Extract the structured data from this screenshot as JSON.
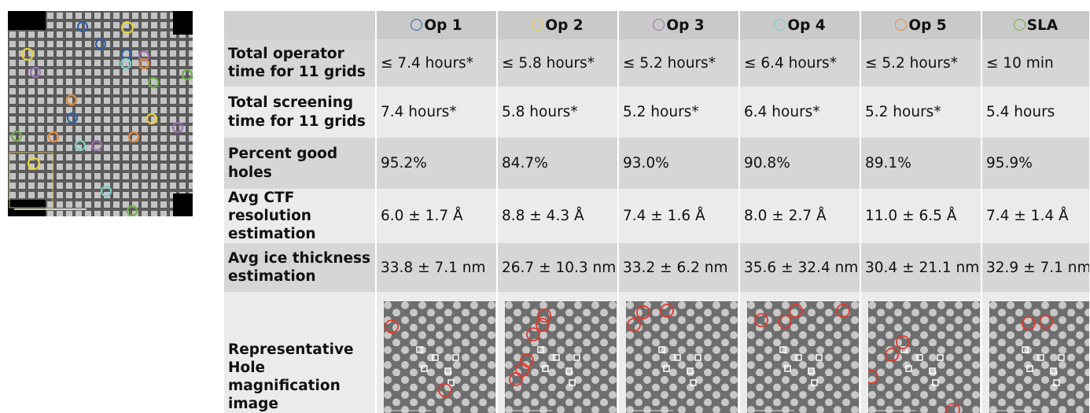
{
  "header": {
    "columns": [
      "Op 1",
      "Op 2",
      "Op 3",
      "Op 4",
      "Op 5",
      "SLA"
    ]
  },
  "rows": [
    {
      "label": "Total operator time for 11 grids",
      "values": [
        "≤ 7.4 hours*",
        "≤ 5.8 hours*",
        "≤ 5.2 hours*",
        "≤ 6.4 hours*",
        "≤ 5.2 hours*",
        "≤ 10 min"
      ]
    },
    {
      "label": "Total screening time for 11 grids",
      "values": [
        "7.4 hours*",
        "5.8 hours*",
        "5.2 hours*",
        "6.4 hours*",
        "5.2 hours*",
        "5.4 hours"
      ]
    },
    {
      "label": "Percent good holes",
      "values": [
        "95.2%",
        "84.7%",
        "93.0%",
        "90.8%",
        "89.1%",
        "95.9%"
      ]
    },
    {
      "label": "Avg CTF resolution estimation",
      "values": [
        "6.0 ± 1.7 Å",
        "8.8 ± 4.3 Å",
        "7.4 ± 1.6 Å",
        "8.0 ± 2.7 Å",
        "11.0 ± 6.5 Å",
        "7.4 ± 1.4 Å"
      ]
    },
    {
      "label": "Avg ice thickness estimation",
      "values": [
        "33.8 ± 7.1 nm",
        "26.7 ± 10.3 nm",
        "33.2 ± 6.2 nm",
        "35.6 ± 32.4 nm",
        "30.4 ± 21.1 nm",
        "32.9 ± 7.1 nm"
      ]
    },
    {
      "label": "Representative Hole magnification image"
    }
  ]
}
